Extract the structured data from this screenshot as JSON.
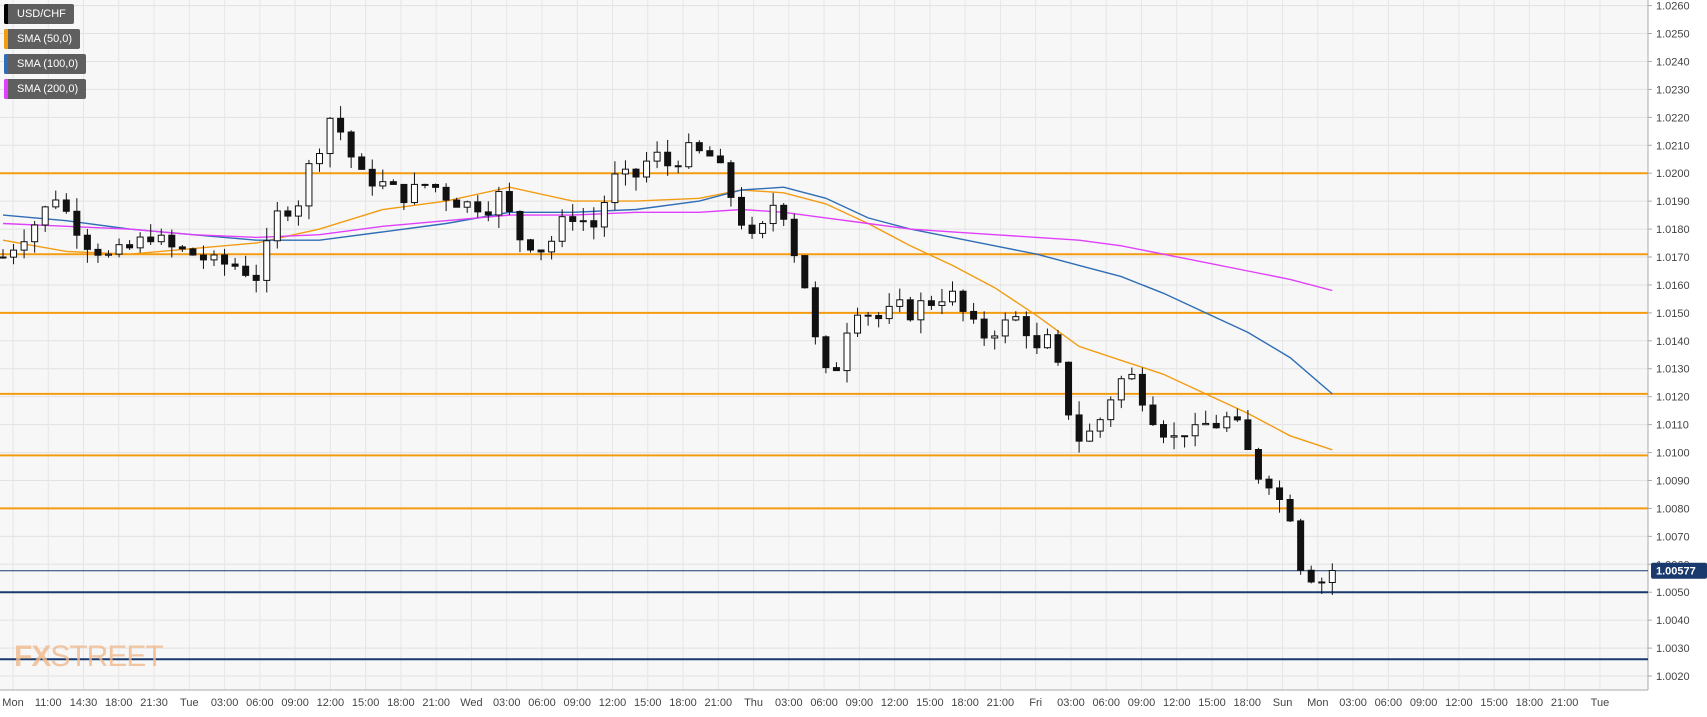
{
  "watermark": {
    "part1": "FX",
    "part2": "STREET"
  },
  "legend": [
    {
      "label": "USD/CHF",
      "color": "#000000"
    },
    {
      "label": "SMA (50,0)",
      "color": "#f39c12"
    },
    {
      "label": "SMA (100,0)",
      "color": "#2f6db5"
    },
    {
      "label": "SMA (200,0)",
      "color": "#e040fb"
    }
  ],
  "chart_data": {
    "type": "candlestick",
    "title": "",
    "xlabel": "",
    "ylabel": "",
    "ylim": [
      1.0015,
      1.0262
    ],
    "y_ticks": [
      "1.0260",
      "1.0250",
      "1.0240",
      "1.0230",
      "1.0220",
      "1.0210",
      "1.0200",
      "1.0190",
      "1.0180",
      "1.0170",
      "1.0160",
      "1.0150",
      "1.0140",
      "1.0130",
      "1.0120",
      "1.0110",
      "1.0100",
      "1.0090",
      "1.0080",
      "1.0070",
      "1.0060",
      "1.0050",
      "1.0040",
      "1.0030",
      "1.0020"
    ],
    "x_ticks": [
      "Mon",
      "11:00",
      "14:30",
      "18:00",
      "21:30",
      "Tue",
      "03:00",
      "06:00",
      "09:00",
      "12:00",
      "15:00",
      "18:00",
      "21:00",
      "Wed",
      "03:00",
      "06:00",
      "09:00",
      "12:00",
      "15:00",
      "18:00",
      "21:00",
      "Thu",
      "03:00",
      "06:00",
      "09:00",
      "12:00",
      "15:00",
      "18:00",
      "21:00",
      "Fri",
      "03:00",
      "06:00",
      "09:00",
      "12:00",
      "15:00",
      "18:00",
      "Sun",
      "Mon",
      "03:00",
      "06:00",
      "09:00",
      "12:00",
      "15:00",
      "18:00",
      "21:00",
      "Tue"
    ],
    "grid": true,
    "current_price": {
      "value": 1.00577,
      "label": "1.00577",
      "color": "#1a3a6e"
    },
    "horizontal_levels": [
      {
        "value": 1.02,
        "color": "#f39c12"
      },
      {
        "value": 1.0171,
        "color": "#f39c12"
      },
      {
        "value": 1.015,
        "color": "#f39c12"
      },
      {
        "value": 1.0121,
        "color": "#f39c12"
      },
      {
        "value": 1.0099,
        "color": "#f39c12"
      },
      {
        "value": 1.008,
        "color": "#f39c12"
      },
      {
        "value": 1.005,
        "color": "#1a3a6e"
      },
      {
        "value": 1.0026,
        "color": "#1a3a6e"
      }
    ],
    "close_path": [
      [
        0,
        1.017
      ],
      [
        3,
        1.0182
      ],
      [
        5,
        1.0192
      ],
      [
        6,
        1.0186
      ],
      [
        8,
        1.0175
      ],
      [
        10,
        1.017
      ],
      [
        12,
        1.0173
      ],
      [
        14,
        1.0178
      ],
      [
        16,
        1.0173
      ],
      [
        18,
        1.0171
      ],
      [
        20,
        1.0168
      ],
      [
        22,
        1.0167
      ],
      [
        23,
        1.0165
      ],
      [
        24,
        1.0163
      ],
      [
        25,
        1.0173
      ],
      [
        26,
        1.0185
      ],
      [
        28,
        1.019
      ],
      [
        29,
        1.0202
      ],
      [
        30,
        1.021
      ],
      [
        31,
        1.022
      ],
      [
        32,
        1.0215
      ],
      [
        33,
        1.0206
      ],
      [
        34,
        1.0199
      ],
      [
        36,
        1.0196
      ],
      [
        38,
        1.0192
      ],
      [
        40,
        1.0196
      ],
      [
        41,
        1.0195
      ],
      [
        42,
        1.0192
      ],
      [
        43,
        1.019
      ],
      [
        44,
        1.0189
      ],
      [
        46,
        1.0188
      ],
      [
        47,
        1.0192
      ],
      [
        48,
        1.0185
      ],
      [
        49,
        1.0177
      ],
      [
        50,
        1.0175
      ],
      [
        51,
        1.0173
      ],
      [
        52,
        1.0176
      ],
      [
        53,
        1.0182
      ],
      [
        54,
        1.0185
      ],
      [
        55,
        1.0183
      ],
      [
        56,
        1.0181
      ],
      [
        57,
        1.019
      ],
      [
        58,
        1.0198
      ],
      [
        60,
        1.0199
      ],
      [
        61,
        1.0204
      ],
      [
        62,
        1.0206
      ],
      [
        63,
        1.0203
      ],
      [
        64,
        1.0205
      ],
      [
        65,
        1.0208
      ],
      [
        66,
        1.0207
      ],
      [
        67,
        1.0206
      ],
      [
        68,
        1.0201
      ],
      [
        69,
        1.0192
      ],
      [
        70,
        1.0183
      ],
      [
        71,
        1.0176
      ],
      [
        72,
        1.018
      ],
      [
        73,
        1.0189
      ],
      [
        74,
        1.0186
      ],
      [
        75,
        1.0172
      ],
      [
        76,
        1.016
      ],
      [
        77,
        1.014
      ],
      [
        78,
        1.0128
      ],
      [
        79,
        1.0131
      ],
      [
        80,
        1.0145
      ],
      [
        81,
        1.0152
      ],
      [
        82,
        1.015
      ],
      [
        83,
        1.0148
      ],
      [
        84,
        1.015
      ],
      [
        85,
        1.0152
      ],
      [
        86,
        1.015
      ],
      [
        87,
        1.0153
      ],
      [
        88,
        1.0154
      ],
      [
        89,
        1.0156
      ],
      [
        90,
        1.0156
      ],
      [
        91,
        1.015
      ],
      [
        92,
        1.0145
      ],
      [
        93,
        1.0142
      ],
      [
        94,
        1.0144
      ],
      [
        95,
        1.0146
      ],
      [
        96,
        1.0148
      ],
      [
        97,
        1.0144
      ],
      [
        98,
        1.0136
      ],
      [
        99,
        1.014
      ],
      [
        100,
        1.013
      ],
      [
        101,
        1.0115
      ],
      [
        102,
        1.0105
      ],
      [
        103,
        1.0107
      ],
      [
        104,
        1.0112
      ],
      [
        105,
        1.012
      ],
      [
        106,
        1.0126
      ],
      [
        107,
        1.0127
      ],
      [
        108,
        1.012
      ],
      [
        109,
        1.0113
      ],
      [
        110,
        1.0108
      ],
      [
        111,
        1.0105
      ],
      [
        112,
        1.0108
      ],
      [
        113,
        1.0107
      ],
      [
        114,
        1.011
      ],
      [
        115,
        1.011
      ],
      [
        116,
        1.0112
      ],
      [
        117,
        1.0109
      ],
      [
        118,
        1.01
      ],
      [
        119,
        1.0092
      ],
      [
        120,
        1.009
      ],
      [
        121,
        1.0083
      ],
      [
        122,
        1.0078
      ],
      [
        123,
        1.006
      ],
      [
        124,
        1.0056
      ],
      [
        125,
        1.0054
      ],
      [
        126,
        1.0058
      ]
    ],
    "series": [
      {
        "name": "SMA (50,0)",
        "color": "#f39c12",
        "x": [
          0,
          6,
          12,
          18,
          24,
          30,
          36,
          42,
          48,
          54,
          60,
          66,
          70,
          74,
          78,
          82,
          86,
          90,
          94,
          98,
          102,
          106,
          110,
          114,
          118,
          122,
          126
        ],
        "y": [
          1.0176,
          1.0172,
          1.0171,
          1.0173,
          1.0175,
          1.018,
          1.0187,
          1.019,
          1.0195,
          1.019,
          1.019,
          1.0191,
          1.0194,
          1.0193,
          1.0189,
          1.0182,
          1.0174,
          1.0167,
          1.0159,
          1.0149,
          1.0138,
          1.0133,
          1.0128,
          1.0121,
          1.0114,
          1.0106,
          1.0101
        ]
      },
      {
        "name": "SMA (100,0)",
        "color": "#2f6db5",
        "x": [
          0,
          6,
          12,
          18,
          24,
          30,
          36,
          42,
          48,
          54,
          60,
          66,
          70,
          74,
          78,
          82,
          86,
          90,
          94,
          98,
          102,
          106,
          110,
          114,
          118,
          122,
          126
        ],
        "y": [
          1.0185,
          1.0183,
          1.018,
          1.0178,
          1.0176,
          1.0176,
          1.0179,
          1.0182,
          1.0186,
          1.0186,
          1.0187,
          1.019,
          1.0194,
          1.0195,
          1.0191,
          1.0184,
          1.018,
          1.0177,
          1.0174,
          1.0171,
          1.0167,
          1.0163,
          1.0157,
          1.015,
          1.0143,
          1.0134,
          1.0121
        ]
      },
      {
        "name": "SMA (200,0)",
        "color": "#e040fb",
        "x": [
          0,
          6,
          12,
          18,
          24,
          30,
          36,
          42,
          48,
          54,
          60,
          66,
          70,
          74,
          78,
          82,
          86,
          90,
          94,
          98,
          102,
          106,
          110,
          114,
          118,
          122,
          126
        ],
        "y": [
          1.0182,
          1.0181,
          1.018,
          1.0178,
          1.0177,
          1.0178,
          1.0181,
          1.0183,
          1.0185,
          1.0185,
          1.0186,
          1.0186,
          1.0187,
          1.0186,
          1.0184,
          1.0182,
          1.018,
          1.0179,
          1.0178,
          1.0177,
          1.0176,
          1.0174,
          1.0171,
          1.0168,
          1.0165,
          1.0162,
          1.0158
        ]
      }
    ]
  }
}
